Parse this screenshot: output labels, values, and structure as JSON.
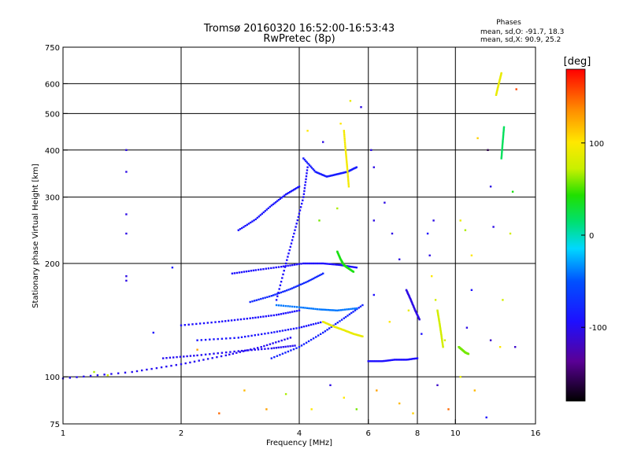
{
  "chart_data": {
    "type": "scatter",
    "title": "Tromsø 20160320 16:52:00-16:53:43",
    "subtitle": "RwPretec (8p)",
    "stats": {
      "heading": "Phases",
      "line_o": "mean, sd,O: -91.7, 18.3",
      "line_x": "mean, sd,X:  90.9, 25.2"
    },
    "xlabel": "Frequency [MHz]",
    "ylabel": "Stationary phase Virtual Height [km]",
    "x_scale": "log2",
    "y_scale": "log",
    "xlim": [
      1,
      16
    ],
    "ylim": [
      75,
      750
    ],
    "x_ticks": [
      1,
      2,
      4,
      6,
      8,
      10,
      16
    ],
    "x_tick_labels": [
      "1",
      "2",
      "4",
      "6",
      "8",
      "10",
      "16"
    ],
    "y_ticks": [
      75,
      100,
      200,
      300,
      400,
      500,
      600,
      750
    ],
    "y_tick_labels": [
      "75",
      "100",
      "200",
      "300",
      "400",
      "500",
      "600",
      "750"
    ],
    "grid": true,
    "colorbar": {
      "label": "[deg]",
      "range": [
        -180,
        180
      ],
      "ticks": [
        -100,
        0,
        100
      ],
      "tick_labels": [
        "-100",
        "0",
        "100"
      ]
    },
    "traces": [
      {
        "x": [
          1.0,
          1.5,
          2.0,
          2.6,
          3.2,
          3.8
        ],
        "y": [
          99,
          103,
          108,
          114,
          120,
          127
        ],
        "phase": -105
      },
      {
        "x": [
          1.8,
          2.2,
          2.8,
          3.4,
          3.9
        ],
        "y": [
          112,
          114,
          117,
          119,
          121
        ],
        "phase": -105
      },
      {
        "x": [
          2.2,
          2.8,
          3.4,
          4.0,
          4.6
        ],
        "y": [
          125,
          127,
          131,
          135,
          140
        ],
        "phase": -95
      },
      {
        "x": [
          3.4,
          4.0,
          4.6,
          5.2,
          5.8
        ],
        "y": [
          112,
          120,
          131,
          143,
          155
        ],
        "phase": -85
      },
      {
        "x": [
          2.0,
          2.5,
          3.0,
          3.5,
          4.0
        ],
        "y": [
          137,
          140,
          143,
          146,
          150
        ],
        "phase": -100
      },
      {
        "x": [
          3.5,
          4.0,
          4.5,
          5.0,
          5.6
        ],
        "y": [
          155,
          153,
          151,
          150,
          152
        ],
        "phase": -40
      },
      {
        "x": [
          3.0,
          3.4,
          3.8,
          4.2,
          4.6
        ],
        "y": [
          158,
          164,
          171,
          179,
          188
        ],
        "phase": -80
      },
      {
        "x": [
          2.7,
          3.1,
          3.6,
          4.1,
          4.6,
          5.1,
          5.6
        ],
        "y": [
          188,
          192,
          196,
          200,
          200,
          198,
          195
        ],
        "phase": -100
      },
      {
        "x": [
          2.8,
          3.1,
          3.4,
          3.7,
          4.0
        ],
        "y": [
          245,
          262,
          285,
          305,
          320
        ],
        "phase": -95
      },
      {
        "x": [
          3.5,
          3.7,
          3.9,
          4.1,
          4.2
        ],
        "y": [
          160,
          200,
          245,
          300,
          360
        ],
        "phase": -100
      },
      {
        "x": [
          4.1,
          4.4,
          4.7,
          5.0,
          5.3,
          5.6
        ],
        "y": [
          380,
          350,
          340,
          345,
          350,
          360
        ],
        "phase": -90
      },
      {
        "x": [
          5.2,
          5.25,
          5.3,
          5.35
        ],
        "y": [
          450,
          400,
          360,
          320
        ],
        "phase": 95
      },
      {
        "x": [
          5.0,
          5.1,
          5.2,
          5.3,
          5.5
        ],
        "y": [
          215,
          205,
          198,
          195,
          190
        ],
        "phase": 40
      },
      {
        "x": [
          4.6,
          4.9,
          5.2,
          5.5,
          5.8
        ],
        "y": [
          140,
          136,
          133,
          130,
          128
        ],
        "phase": 90
      },
      {
        "x": [
          6.0,
          6.5,
          7.0,
          7.5,
          8.0
        ],
        "y": [
          110,
          110,
          111,
          111,
          112
        ],
        "phase": -100
      },
      {
        "x": [
          7.5,
          7.7,
          7.9,
          8.1
        ],
        "y": [
          170,
          160,
          150,
          142
        ],
        "phase": -110
      },
      {
        "x": [
          9.0,
          9.1,
          9.2,
          9.3
        ],
        "y": [
          150,
          140,
          130,
          120
        ],
        "phase": 80
      },
      {
        "x": [
          10.2,
          10.4,
          10.6,
          10.8
        ],
        "y": [
          120,
          118,
          116,
          115
        ],
        "phase": 60
      },
      {
        "x": [
          12.7,
          12.9,
          13.1
        ],
        "y": [
          560,
          600,
          640
        ],
        "phase": 90
      },
      {
        "x": [
          13.1,
          13.2,
          13.3
        ],
        "y": [
          380,
          420,
          460
        ],
        "phase": 20
      }
    ],
    "scatter": [
      {
        "x": 1.45,
        "y": 400,
        "phase": -110
      },
      {
        "x": 1.45,
        "y": 350,
        "phase": -110
      },
      {
        "x": 1.45,
        "y": 270,
        "phase": -110
      },
      {
        "x": 1.45,
        "y": 240,
        "phase": -110
      },
      {
        "x": 1.45,
        "y": 185,
        "phase": -110
      },
      {
        "x": 1.45,
        "y": 180,
        "phase": -110
      },
      {
        "x": 1.9,
        "y": 195,
        "phase": -90
      },
      {
        "x": 1.2,
        "y": 103,
        "phase": 70
      },
      {
        "x": 1.3,
        "y": 101,
        "phase": 80
      },
      {
        "x": 1.7,
        "y": 131,
        "phase": -100
      },
      {
        "x": 2.5,
        "y": 80,
        "phase": 150
      },
      {
        "x": 3.3,
        "y": 82,
        "phase": 130
      },
      {
        "x": 4.8,
        "y": 95,
        "phase": -110
      },
      {
        "x": 5.2,
        "y": 88,
        "phase": 100
      },
      {
        "x": 5.6,
        "y": 82,
        "phase": 60
      },
      {
        "x": 6.3,
        "y": 92,
        "phase": 130
      },
      {
        "x": 7.2,
        "y": 85,
        "phase": 120
      },
      {
        "x": 7.8,
        "y": 80,
        "phase": 110
      },
      {
        "x": 9.0,
        "y": 95,
        "phase": -120
      },
      {
        "x": 9.6,
        "y": 82,
        "phase": 150
      },
      {
        "x": 10.3,
        "y": 100,
        "phase": 90
      },
      {
        "x": 11.2,
        "y": 92,
        "phase": 120
      },
      {
        "x": 12.0,
        "y": 78,
        "phase": -100
      },
      {
        "x": 6.2,
        "y": 165,
        "phase": -100
      },
      {
        "x": 6.2,
        "y": 260,
        "phase": -110
      },
      {
        "x": 6.1,
        "y": 400,
        "phase": -110
      },
      {
        "x": 6.2,
        "y": 360,
        "phase": -110
      },
      {
        "x": 5.75,
        "y": 520,
        "phase": -110
      },
      {
        "x": 6.9,
        "y": 240,
        "phase": -110
      },
      {
        "x": 6.6,
        "y": 290,
        "phase": -110
      },
      {
        "x": 7.2,
        "y": 205,
        "phase": -110
      },
      {
        "x": 8.5,
        "y": 240,
        "phase": -100
      },
      {
        "x": 8.6,
        "y": 210,
        "phase": -110
      },
      {
        "x": 8.8,
        "y": 260,
        "phase": -110
      },
      {
        "x": 8.7,
        "y": 185,
        "phase": 100
      },
      {
        "x": 8.9,
        "y": 160,
        "phase": 80
      },
      {
        "x": 10.6,
        "y": 245,
        "phase": 70
      },
      {
        "x": 10.3,
        "y": 260,
        "phase": 90
      },
      {
        "x": 11.0,
        "y": 210,
        "phase": 100
      },
      {
        "x": 11.0,
        "y": 170,
        "phase": -100
      },
      {
        "x": 11.4,
        "y": 430,
        "phase": 110
      },
      {
        "x": 12.1,
        "y": 400,
        "phase": -160
      },
      {
        "x": 12.3,
        "y": 320,
        "phase": -110
      },
      {
        "x": 12.5,
        "y": 250,
        "phase": -110
      },
      {
        "x": 12.3,
        "y": 125,
        "phase": -120
      },
      {
        "x": 13.0,
        "y": 120,
        "phase": 100
      },
      {
        "x": 13.2,
        "y": 160,
        "phase": 80
      },
      {
        "x": 14.2,
        "y": 120,
        "phase": -120
      },
      {
        "x": 13.8,
        "y": 240,
        "phase": 80
      },
      {
        "x": 14.0,
        "y": 310,
        "phase": 40
      },
      {
        "x": 14.3,
        "y": 580,
        "phase": 160
      },
      {
        "x": 7.6,
        "y": 150,
        "phase": 90
      },
      {
        "x": 8.2,
        "y": 130,
        "phase": -100
      },
      {
        "x": 9.4,
        "y": 125,
        "phase": 80
      },
      {
        "x": 10.7,
        "y": 135,
        "phase": -110
      },
      {
        "x": 6.8,
        "y": 140,
        "phase": 100
      },
      {
        "x": 4.2,
        "y": 450,
        "phase": 100
      },
      {
        "x": 5.4,
        "y": 540,
        "phase": 90
      },
      {
        "x": 4.6,
        "y": 420,
        "phase": -110
      },
      {
        "x": 5.1,
        "y": 470,
        "phase": 100
      },
      {
        "x": 5.0,
        "y": 280,
        "phase": 70
      },
      {
        "x": 4.5,
        "y": 260,
        "phase": 60
      },
      {
        "x": 2.9,
        "y": 92,
        "phase": 120
      },
      {
        "x": 3.7,
        "y": 90,
        "phase": 70
      },
      {
        "x": 4.3,
        "y": 82,
        "phase": 100
      },
      {
        "x": 2.2,
        "y": 118,
        "phase": 130
      }
    ]
  }
}
